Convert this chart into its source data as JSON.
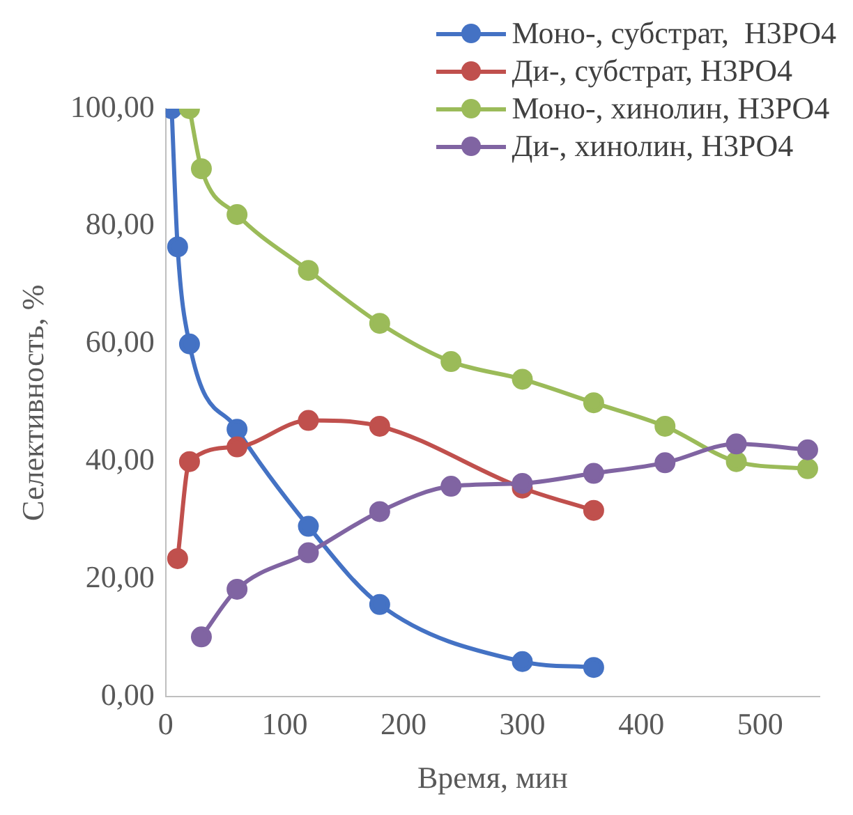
{
  "chart_data": {
    "type": "line",
    "xlabel": "Время, мин",
    "ylabel": "Селективность, %",
    "xlim": [
      0,
      550
    ],
    "xticks": [
      0,
      100,
      200,
      300,
      400,
      500
    ],
    "ylim": [
      0,
      100
    ],
    "yticks": [
      {
        "value": 0,
        "label": "0,00"
      },
      {
        "value": 20,
        "label": "20,00"
      },
      {
        "value": 40,
        "label": "40,00"
      },
      {
        "value": 60,
        "label": "60,00"
      },
      {
        "value": 80,
        "label": "80,00"
      },
      {
        "value": 100,
        "label": "100,00"
      }
    ],
    "grid": false,
    "legend": "top right",
    "marker": "circle",
    "line_style": "solid",
    "series": [
      {
        "name": "Моно-, субстрат,  H3PO4",
        "color": "#4472c4",
        "x": [
          5,
          10,
          20,
          60,
          120,
          180,
          300,
          360
        ],
        "values": [
          100,
          76.5,
          60,
          45.5,
          29,
          15.7,
          6,
          5
        ]
      },
      {
        "name": "Ди-, субстрат, H3PO4",
        "color": "#c0504d",
        "x": [
          10,
          20,
          60,
          120,
          180,
          300,
          360
        ],
        "values": [
          23.5,
          40,
          42.5,
          47,
          46,
          35.5,
          31.7
        ]
      },
      {
        "name": "Моно-, хинолин, H3PO4",
        "color": "#9bbb59",
        "x": [
          20,
          30,
          60,
          120,
          180,
          240,
          300,
          360,
          420,
          480,
          540
        ],
        "values": [
          100,
          89.8,
          82,
          72.5,
          63.5,
          57,
          54,
          50,
          46,
          40,
          38.8
        ]
      },
      {
        "name": "Ди-, хинолин, H3PO4",
        "color": "#8064a2",
        "x": [
          30,
          60,
          120,
          180,
          240,
          300,
          360,
          420,
          480,
          540
        ],
        "values": [
          10.2,
          18.3,
          24.5,
          31.5,
          35.8,
          36.3,
          38,
          39.8,
          43,
          42
        ]
      }
    ]
  }
}
